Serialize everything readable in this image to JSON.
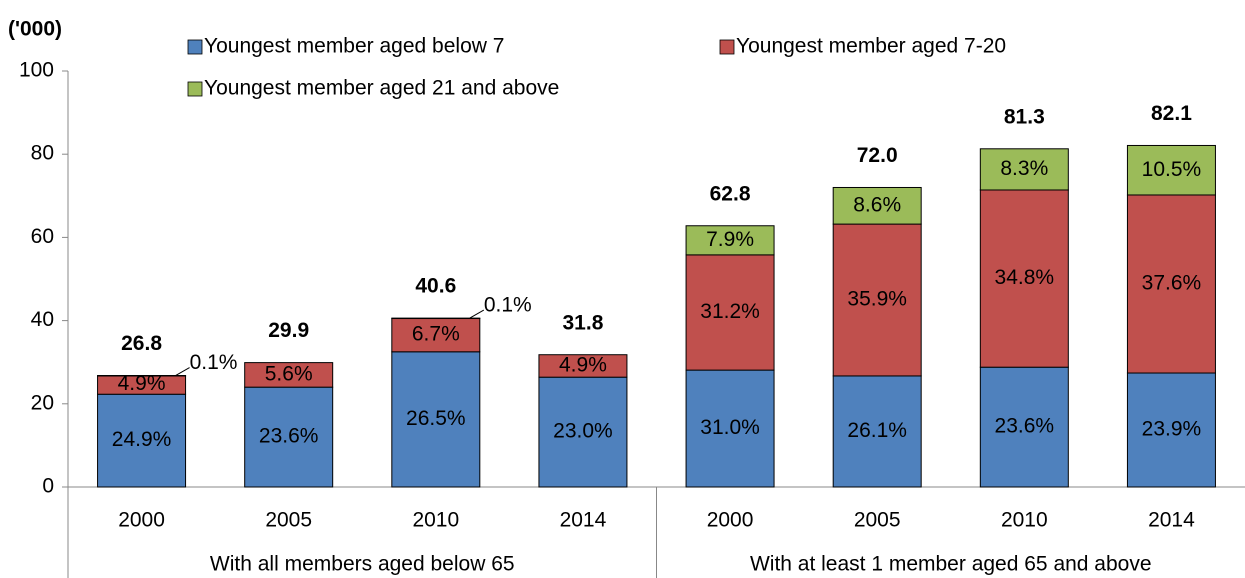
{
  "chart_data": {
    "type": "stacked_bar",
    "y_label": "('000)",
    "categories": [
      "2000",
      "2005",
      "2010",
      "2014",
      "2000",
      "2005",
      "2010",
      "2014"
    ],
    "groups": [
      "With all members aged below 65",
      "With at least 1 member aged 65 and above"
    ],
    "series": [
      {
        "name": "Youngest member aged below 7",
        "color": "#4f81bd",
        "values": [
          22.3,
          24.0,
          32.5,
          26.4,
          28.1,
          26.7,
          28.8,
          27.4
        ],
        "labels": [
          "24.9%",
          "23.6%",
          "26.5%",
          "23.0%",
          "31.0%",
          "26.1%",
          "23.6%",
          "23.9%"
        ]
      },
      {
        "name": "Youngest member aged 7-20",
        "color": "#c0504d",
        "values": [
          4.4,
          5.9,
          8.0,
          5.4,
          27.7,
          36.5,
          42.6,
          42.8
        ],
        "labels": [
          "4.9%",
          "5.6%",
          "6.7%",
          "4.9%",
          "31.2%",
          "35.9%",
          "34.8%",
          "37.6%"
        ]
      },
      {
        "name": "Youngest member aged 21 and above",
        "color": "#9bbb59",
        "values": [
          0.1,
          null,
          0.1,
          null,
          7.0,
          8.8,
          9.9,
          11.9
        ],
        "labels": [
          "0.1%",
          null,
          "0.1%",
          null,
          "7.9%",
          "8.6%",
          "8.3%",
          "10.5%"
        ]
      }
    ],
    "totals": [
      "26.8",
      "29.9",
      "40.6",
      "31.8",
      "62.8",
      "72.0",
      "81.3",
      "82.1"
    ],
    "ylim": [
      0,
      100
    ],
    "yticks": [
      0,
      20,
      40,
      60,
      80,
      100
    ],
    "grid": false
  }
}
